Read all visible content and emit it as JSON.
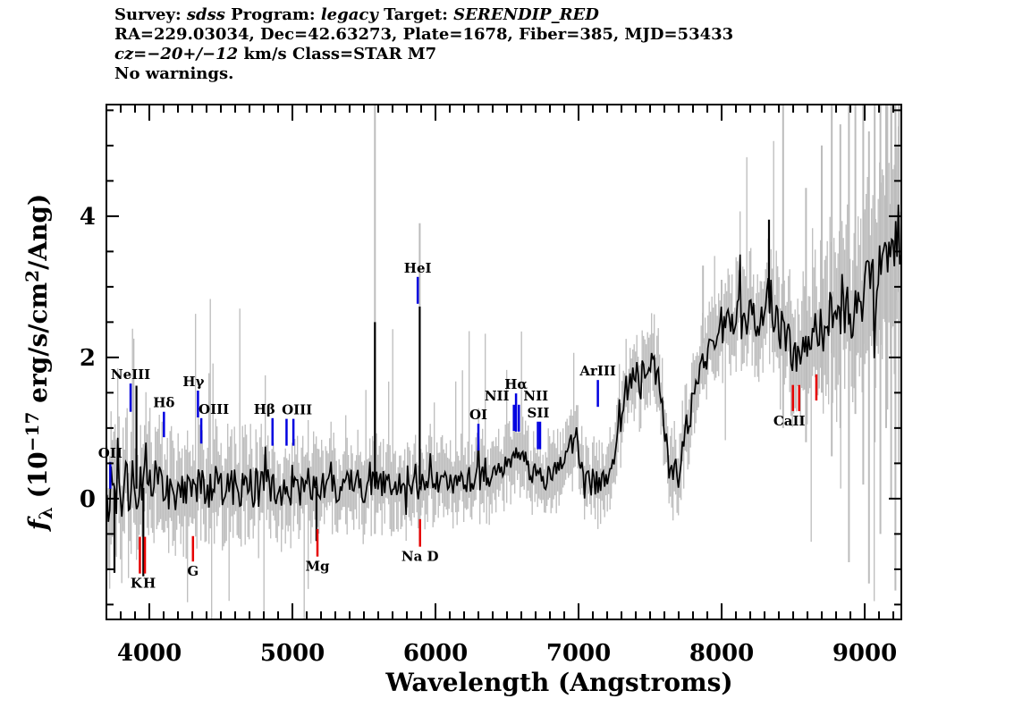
{
  "title_block": {
    "lines": [
      {
        "segments": [
          {
            "text": "Survey: "
          },
          {
            "text": "sdss",
            "italic": true
          },
          {
            "text": " Program: "
          },
          {
            "text": "legacy",
            "italic": true
          },
          {
            "text": " Target: "
          },
          {
            "text": "SERENDIP_RED",
            "italic": true
          }
        ]
      },
      {
        "segments": [
          {
            "text": "RA=229.03034, Dec=42.63273, Plate=1678, Fiber=385, MJD=53433"
          }
        ]
      },
      {
        "segments": [
          {
            "text": "cz=−20+/−12",
            "italic": true
          },
          {
            "text": " km/s Class=STAR M7"
          }
        ]
      },
      {
        "segments": [
          {
            "text": "No warnings."
          }
        ]
      }
    ]
  },
  "chart_data": {
    "type": "line",
    "title": "",
    "xlabel": "Wavelength (Angstroms)",
    "ylabel": "f_lambda (10^-17 erg/s/cm^2/Ang)",
    "ylabel_segments": [
      {
        "text": "f",
        "italic": true
      },
      {
        "text": "λ",
        "script": "sub"
      },
      {
        "text": " (10"
      },
      {
        "text": "−17",
        "script": "sup"
      },
      {
        "text": " erg/s/cm"
      },
      {
        "text": "2",
        "script": "sup"
      },
      {
        "text": "/Ang)"
      }
    ],
    "xlim": [
      3700,
      9256
    ],
    "ylim": [
      -1.71,
      5.58
    ],
    "x_major_ticks": [
      4000,
      5000,
      6000,
      7000,
      8000,
      9000
    ],
    "x_tick_labels": [
      "4000",
      "5000",
      "6000",
      "7000",
      "8000",
      "9000"
    ],
    "x_minor_step": 100,
    "y_major_ticks": [
      0,
      2,
      4
    ],
    "y_tick_labels": [
      "0",
      "2",
      "4"
    ],
    "y_minor_step": 0.5,
    "grid": false,
    "legend": "none",
    "colors": {
      "flux": "#000000",
      "error": "#bcbcbc",
      "emission": "#0000e0",
      "absorption": "#e60000",
      "axis": "#000000"
    },
    "continuum": [
      [
        3700,
        0.1
      ],
      [
        3760,
        0.15
      ],
      [
        3900,
        0.14
      ],
      [
        4000,
        0.16
      ],
      [
        4150,
        0.15
      ],
      [
        4300,
        0.17
      ],
      [
        4450,
        0.15
      ],
      [
        4600,
        0.16
      ],
      [
        4800,
        0.15
      ],
      [
        5000,
        0.17
      ],
      [
        5200,
        0.16
      ],
      [
        5400,
        0.18
      ],
      [
        5600,
        0.17
      ],
      [
        5800,
        0.18
      ],
      [
        6000,
        0.21
      ],
      [
        6150,
        0.24
      ],
      [
        6300,
        0.29
      ],
      [
        6420,
        0.33
      ],
      [
        6500,
        0.5
      ],
      [
        6563,
        0.78
      ],
      [
        6610,
        0.55
      ],
      [
        6680,
        0.32
      ],
      [
        6760,
        0.28
      ],
      [
        6840,
        0.42
      ],
      [
        6910,
        0.65
      ],
      [
        6975,
        0.78
      ],
      [
        7030,
        0.4
      ],
      [
        7090,
        0.22
      ],
      [
        7150,
        0.23
      ],
      [
        7210,
        0.4
      ],
      [
        7260,
        0.75
      ],
      [
        7310,
        1.3
      ],
      [
        7360,
        1.7
      ],
      [
        7410,
        1.8
      ],
      [
        7460,
        1.82
      ],
      [
        7510,
        1.9
      ],
      [
        7550,
        1.8
      ],
      [
        7590,
        1.2
      ],
      [
        7630,
        0.5
      ],
      [
        7665,
        0.38
      ],
      [
        7700,
        0.5
      ],
      [
        7740,
        0.85
      ],
      [
        7770,
        1.15
      ],
      [
        7810,
        1.45
      ],
      [
        7860,
        1.85
      ],
      [
        7910,
        2.15
      ],
      [
        7960,
        2.25
      ],
      [
        8010,
        2.4
      ],
      [
        8070,
        2.45
      ],
      [
        8130,
        2.6
      ],
      [
        8190,
        2.55
      ],
      [
        8250,
        2.5
      ],
      [
        8300,
        2.8
      ],
      [
        8330,
        2.85
      ],
      [
        8370,
        2.6
      ],
      [
        8420,
        2.4
      ],
      [
        8470,
        2.15
      ],
      [
        8500,
        2.0
      ],
      [
        8540,
        2.1
      ],
      [
        8580,
        1.95
      ],
      [
        8630,
        2.2
      ],
      [
        8690,
        2.4
      ],
      [
        8740,
        2.5
      ],
      [
        8800,
        2.65
      ],
      [
        8860,
        2.55
      ],
      [
        8910,
        2.7
      ],
      [
        8960,
        2.8
      ],
      [
        9010,
        2.9
      ],
      [
        9060,
        3.0
      ],
      [
        9110,
        3.15
      ],
      [
        9160,
        3.35
      ],
      [
        9210,
        3.45
      ],
      [
        9256,
        3.2
      ]
    ],
    "noise_amp": [
      [
        3700,
        0.5
      ],
      [
        3900,
        0.42
      ],
      [
        4200,
        0.35
      ],
      [
        4700,
        0.3
      ],
      [
        5200,
        0.26
      ],
      [
        5700,
        0.22
      ],
      [
        6200,
        0.18
      ],
      [
        6600,
        0.18
      ],
      [
        7000,
        0.2
      ],
      [
        7400,
        0.22
      ],
      [
        7800,
        0.22
      ],
      [
        8200,
        0.28
      ],
      [
        8600,
        0.35
      ],
      [
        9000,
        0.45
      ],
      [
        9256,
        0.55
      ]
    ],
    "error_amp": [
      [
        3700,
        0.85
      ],
      [
        3900,
        0.7
      ],
      [
        4200,
        0.6
      ],
      [
        4700,
        0.55
      ],
      [
        5200,
        0.5
      ],
      [
        5700,
        0.45
      ],
      [
        6200,
        0.42
      ],
      [
        6600,
        0.4
      ],
      [
        7000,
        0.42
      ],
      [
        7400,
        0.45
      ],
      [
        7800,
        0.45
      ],
      [
        8200,
        0.55
      ],
      [
        8500,
        0.7
      ],
      [
        8800,
        0.85
      ],
      [
        9000,
        1.0
      ],
      [
        9256,
        1.2
      ]
    ],
    "black_spikes": [
      [
        3756,
        -1.05
      ],
      [
        3910,
        1.6
      ],
      [
        3958,
        -1.1
      ],
      [
        5168,
        -0.6
      ],
      [
        5577,
        2.5
      ],
      [
        5890,
        2.72
      ],
      [
        8331,
        3.95
      ]
    ],
    "gray_columns": [
      [
        5577,
        -0.5,
        5.58
      ],
      [
        5890,
        -0.6,
        3.9
      ],
      [
        7870,
        2.2,
        3.3
      ],
      [
        8000,
        2.3,
        3.1
      ],
      [
        8430,
        1.0,
        5.58
      ],
      [
        8590,
        0.8,
        4.4
      ],
      [
        8700,
        1.5,
        5.0
      ],
      [
        8770,
        0.6,
        5.58
      ],
      [
        8830,
        1.0,
        5.3
      ],
      [
        8890,
        -0.9,
        5.58
      ],
      [
        8935,
        1.2,
        5.58
      ],
      [
        8990,
        0.2,
        5.58
      ],
      [
        9030,
        -1.2,
        5.2
      ],
      [
        9070,
        0.8,
        5.58
      ],
      [
        9110,
        -0.5,
        5.58
      ],
      [
        9150,
        1.0,
        5.58
      ],
      [
        9185,
        0.0,
        5.58
      ],
      [
        9215,
        -1.3,
        5.58
      ],
      [
        9240,
        0.5,
        5.58
      ]
    ],
    "spectral_lines": [
      {
        "label": "OII",
        "wavelength": 3727,
        "kind": "emission",
        "tick_f": [
          0.14,
          0.52
        ],
        "label_dx": 0
      },
      {
        "label": "NeIII",
        "wavelength": 3869,
        "kind": "emission",
        "tick_f": [
          1.23,
          1.63
        ],
        "label_dx": 0
      },
      {
        "label": "Hδ",
        "wavelength": 4102,
        "kind": "emission",
        "tick_f": [
          0.87,
          1.23
        ],
        "label_dx": 0
      },
      {
        "label": "Hγ",
        "wavelength": 4340,
        "kind": "emission",
        "tick_f": [
          1.15,
          1.53
        ],
        "label_dx": -5
      },
      {
        "label": "OIII",
        "wavelength": 4363,
        "kind": "emission",
        "tick_f": [
          0.78,
          1.14
        ],
        "label_dx": 14
      },
      {
        "label": "Hβ",
        "wavelength": 4861,
        "kind": "emission",
        "tick_f": [
          0.75,
          1.14
        ],
        "label_dx": -9
      },
      {
        "label": "",
        "wavelength": 4959,
        "kind": "emission",
        "tick_f": [
          0.75,
          1.13
        ],
        "label_dx": 0
      },
      {
        "label": "OIII",
        "wavelength": 5007,
        "kind": "emission",
        "tick_f": [
          0.75,
          1.13
        ],
        "label_dx": 4
      },
      {
        "label": "HeI",
        "wavelength": 5876,
        "kind": "emission",
        "tick_f": [
          2.76,
          3.14
        ],
        "label_dx": 0
      },
      {
        "label": "OI",
        "wavelength": 6300,
        "kind": "emission",
        "tick_f": [
          0.68,
          1.06
        ],
        "label_dx": 0
      },
      {
        "label": "NII",
        "wavelength": 6548,
        "kind": "emission",
        "tick_f": [
          0.96,
          1.33
        ],
        "label_dx": -19
      },
      {
        "label": "Hα",
        "wavelength": 6563,
        "kind": "emission",
        "tick_f": [
          0.95,
          1.49
        ],
        "label_dx": 0
      },
      {
        "label": "NII",
        "wavelength": 6583,
        "kind": "emission",
        "tick_f": [
          0.95,
          1.33
        ],
        "label_dx": 19
      },
      {
        "label": "",
        "wavelength": 6716,
        "kind": "emission",
        "tick_f": [
          0.7,
          1.09
        ],
        "label_dx": 0
      },
      {
        "label": "SII",
        "wavelength": 6731,
        "kind": "emission",
        "tick_f": [
          0.7,
          1.09
        ],
        "label_dx": -2
      },
      {
        "label": "ArIII",
        "wavelength": 7135,
        "kind": "emission",
        "tick_f": [
          1.3,
          1.68
        ],
        "label_dx": 0
      },
      {
        "label": "K",
        "wavelength": 3934,
        "kind": "absorption",
        "tick_f": [
          -1.06,
          -0.54
        ],
        "label_dx": -4
      },
      {
        "label": "H",
        "wavelength": 3969,
        "kind": "absorption",
        "tick_f": [
          -1.06,
          -0.54
        ],
        "label_dx": 5
      },
      {
        "label": "G",
        "wavelength": 4305,
        "kind": "absorption",
        "tick_f": [
          -0.89,
          -0.53
        ],
        "label_dx": 0
      },
      {
        "label": "Mg",
        "wavelength": 5175,
        "kind": "absorption",
        "tick_f": [
          -0.82,
          -0.43
        ],
        "label_dx": 0
      },
      {
        "label": "Na D",
        "wavelength": 5892,
        "kind": "absorption",
        "tick_f": [
          -0.68,
          -0.29
        ],
        "label_dx": 0
      },
      {
        "label": "CaII",
        "wavelength": 8498,
        "kind": "absorption",
        "tick_f": [
          1.24,
          1.61
        ],
        "label_dx": -4
      },
      {
        "label": "",
        "wavelength": 8542,
        "kind": "absorption",
        "tick_f": [
          1.24,
          1.61
        ],
        "label_dx": 0
      },
      {
        "label": "",
        "wavelength": 8662,
        "kind": "absorption",
        "tick_f": [
          1.39,
          1.76
        ],
        "label_dx": 0
      }
    ]
  }
}
